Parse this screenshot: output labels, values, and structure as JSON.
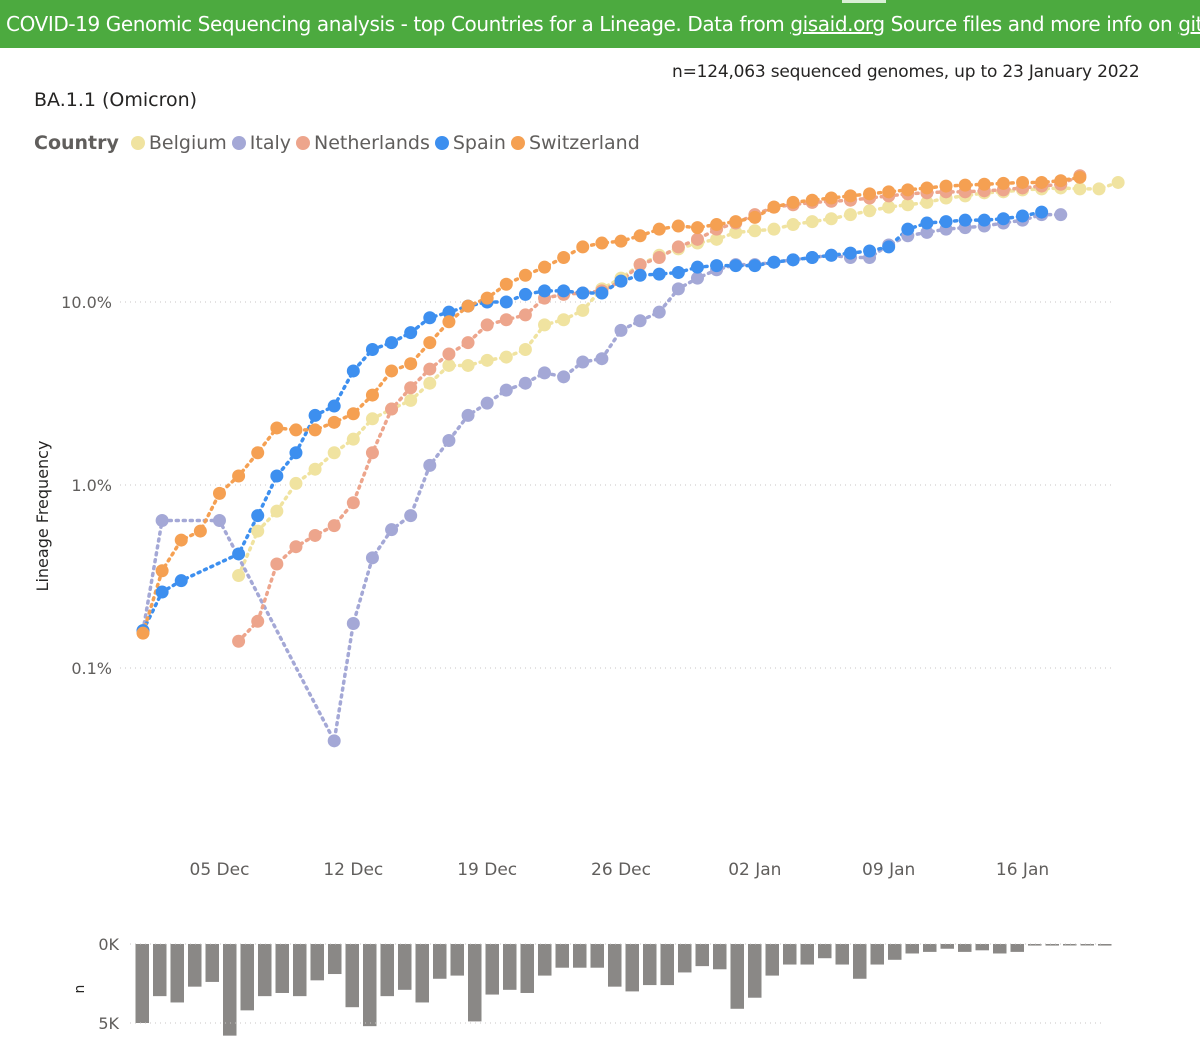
{
  "banner": {
    "text_before": "COVID-19 Genomic Sequencing analysis - top Countries for a Lineage. Data from ",
    "link1": "gisaid.org",
    "text_middle": " Source files and more info on ",
    "link2": "github",
    "text_after": "."
  },
  "info": "n=124,063 sequenced genomes, up to 23 January 2022",
  "title": "BA.1.1 (Omicron)",
  "legend": {
    "title": "Country",
    "items": [
      {
        "name": "Belgium",
        "color": "#f0e3a0"
      },
      {
        "name": "Italy",
        "color": "#a4a8d6"
      },
      {
        "name": "Netherlands",
        "color": "#eda58c"
      },
      {
        "name": "Spain",
        "color": "#3d8fef"
      },
      {
        "name": "Switzerland",
        "color": "#f5a052"
      }
    ]
  },
  "chart_data": [
    {
      "type": "line",
      "scale": "log",
      "ylabel": "Lineage Frequency",
      "yticks": [
        {
          "value": 0.1,
          "label": "0.1%"
        },
        {
          "value": 1.0,
          "label": "1.0%"
        },
        {
          "value": 10.0,
          "label": "10.0%"
        }
      ],
      "xticks": [
        "05 Dec",
        "12 Dec",
        "19 Dec",
        "26 Dec",
        "02 Jan",
        "09 Jan",
        "16 Jan"
      ],
      "x_dates": [
        "01 Dec",
        "02 Dec",
        "03 Dec",
        "04 Dec",
        "05 Dec",
        "06 Dec",
        "07 Dec",
        "08 Dec",
        "09 Dec",
        "10 Dec",
        "11 Dec",
        "12 Dec",
        "13 Dec",
        "14 Dec",
        "15 Dec",
        "16 Dec",
        "17 Dec",
        "18 Dec",
        "19 Dec",
        "20 Dec",
        "21 Dec",
        "22 Dec",
        "23 Dec",
        "24 Dec",
        "25 Dec",
        "26 Dec",
        "27 Dec",
        "28 Dec",
        "29 Dec",
        "30 Dec",
        "31 Dec",
        "01 Jan",
        "02 Jan",
        "03 Jan",
        "04 Jan",
        "05 Jan",
        "06 Jan",
        "07 Jan",
        "08 Jan",
        "09 Jan",
        "10 Jan",
        "11 Jan",
        "12 Jan",
        "13 Jan",
        "14 Jan",
        "15 Jan",
        "16 Jan",
        "17 Jan",
        "18 Jan",
        "19 Jan",
        "20 Jan",
        "21 Jan"
      ],
      "series": [
        {
          "name": "Belgium",
          "color": "#f0e3a0",
          "values": [
            null,
            null,
            null,
            null,
            null,
            0.32,
            0.56,
            0.72,
            1.02,
            1.22,
            1.5,
            1.78,
            2.3,
            2.6,
            2.9,
            3.6,
            4.5,
            4.5,
            4.8,
            5.0,
            5.5,
            7.5,
            8.0,
            9.0,
            11.8,
            13.5,
            16.0,
            18.0,
            19.5,
            21.0,
            22.0,
            24.0,
            24.5,
            25.0,
            26.5,
            27.5,
            28.5,
            30.0,
            31.5,
            33.0,
            34.0,
            35.0,
            37.0,
            38.0,
            39.5,
            40.0,
            41.0,
            41.5,
            42.0,
            41.5,
            41.5,
            45.0
          ]
        },
        {
          "name": "Italy",
          "color": "#a4a8d6",
          "values": [
            0.16,
            0.64,
            null,
            null,
            0.64,
            null,
            null,
            null,
            null,
            null,
            0.04,
            0.175,
            0.4,
            0.57,
            0.68,
            1.28,
            1.75,
            2.4,
            2.8,
            3.3,
            3.6,
            4.1,
            3.9,
            4.7,
            4.9,
            7.0,
            7.9,
            8.8,
            11.8,
            13.5,
            15.0,
            16.0,
            16.0,
            16.5,
            17.0,
            17.5,
            18.0,
            17.5,
            17.5,
            20.5,
            23.0,
            24.0,
            25.0,
            25.5,
            26.0,
            27.0,
            28.0,
            30.0,
            30.0
          ]
        },
        {
          "name": "Netherlands",
          "color": "#eda58c",
          "values": [
            null,
            null,
            null,
            null,
            null,
            0.14,
            0.18,
            0.37,
            0.46,
            0.53,
            0.6,
            0.8,
            1.5,
            2.6,
            3.4,
            4.3,
            5.2,
            6.0,
            7.5,
            8.0,
            8.5,
            10.5,
            11.0,
            11.2,
            11.5,
            13.0,
            16.0,
            17.5,
            20.0,
            22.0,
            25.0,
            27.0,
            30.0,
            33.0,
            34.0,
            35.0,
            35.5,
            36.0,
            37.0,
            38.0,
            39.0,
            39.5,
            40.0,
            40.0,
            40.5,
            41.0,
            42.0,
            43.0,
            44.0,
            49.0
          ]
        },
        {
          "name": "Spain",
          "color": "#3d8fef",
          "values": [
            0.16,
            0.26,
            0.3,
            null,
            null,
            0.42,
            0.68,
            1.12,
            1.5,
            2.4,
            2.7,
            4.2,
            5.5,
            6.0,
            6.8,
            8.2,
            8.8,
            9.5,
            10.0,
            10.0,
            11.0,
            11.5,
            11.5,
            11.2,
            11.2,
            13.0,
            14.0,
            14.2,
            14.5,
            15.5,
            15.8,
            15.8,
            15.8,
            16.5,
            17.0,
            17.5,
            18.0,
            18.5,
            19.0,
            20.0,
            25.0,
            27.0,
            27.5,
            28.0,
            28.0,
            28.5,
            29.5,
            31.0
          ]
        },
        {
          "name": "Switzerland",
          "color": "#f5a052",
          "values": [
            0.155,
            0.34,
            0.5,
            0.56,
            0.9,
            1.12,
            1.5,
            2.05,
            2.0,
            2.0,
            2.2,
            2.45,
            3.1,
            4.2,
            4.6,
            6.0,
            7.8,
            9.5,
            10.5,
            12.5,
            14.0,
            15.5,
            17.5,
            20.0,
            21.0,
            21.5,
            23.0,
            25.0,
            26.0,
            25.5,
            26.5,
            27.5,
            29.0,
            33.0,
            35.0,
            36.0,
            37.0,
            38.0,
            39.0,
            40.0,
            41.0,
            42.0,
            43.0,
            43.5,
            44.0,
            44.5,
            45.0,
            45.0,
            46.0,
            48.0
          ]
        }
      ]
    },
    {
      "type": "bar",
      "ylabel": "n",
      "yticks": [
        {
          "value": 0,
          "label": "0K"
        },
        {
          "value": 5000,
          "label": "5K"
        }
      ],
      "values": [
        5000,
        3300,
        3700,
        2700,
        2400,
        5800,
        4200,
        3300,
        3100,
        3300,
        2300,
        1900,
        4000,
        5200,
        3300,
        2900,
        3700,
        2200,
        2000,
        4900,
        3200,
        2900,
        3100,
        2000,
        1500,
        1500,
        1500,
        2700,
        3000,
        2600,
        2600,
        1800,
        1400,
        1600,
        4100,
        3400,
        2000,
        1300,
        1300,
        900,
        1300,
        2200,
        1300,
        1000,
        600,
        500,
        300,
        500,
        400,
        600,
        500,
        100,
        100,
        50,
        30,
        100
      ]
    }
  ]
}
